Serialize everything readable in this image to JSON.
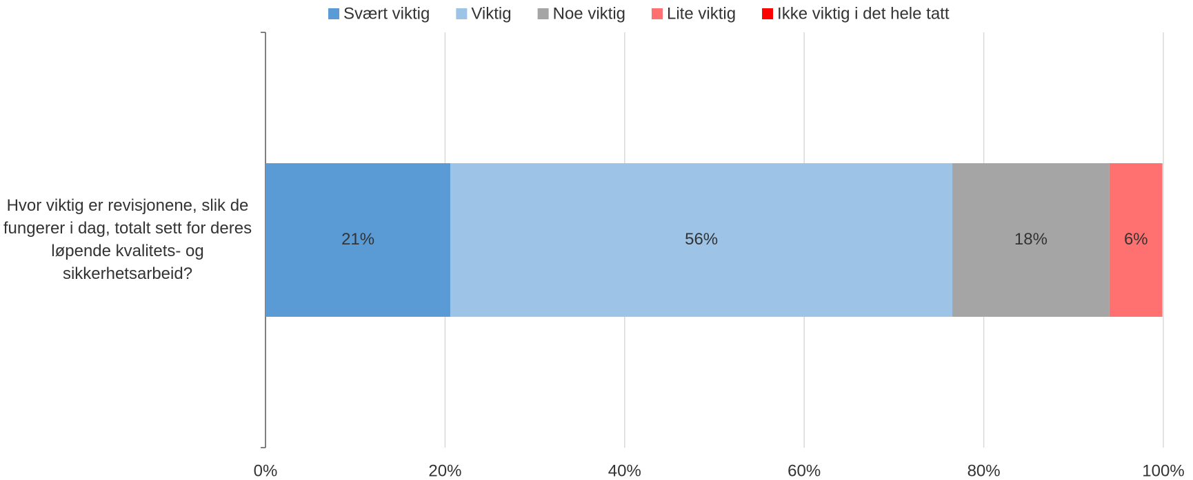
{
  "chart_data": {
    "type": "stacked-bar-horizontal",
    "categories": [
      "Hvor viktig er revisjonene, slik de fungerer i dag, totalt sett for deres løpende kvalitets- og sikkerhetsarbeid?"
    ],
    "series": [
      {
        "name": "Svært viktig",
        "color": "#5b9bd5",
        "values": [
          20.6
        ],
        "value_labels": [
          "21%"
        ]
      },
      {
        "name": "Viktig",
        "color": "#9dc3e6",
        "values": [
          55.9
        ],
        "value_labels": [
          "56%"
        ]
      },
      {
        "name": "Noe viktig",
        "color": "#a5a5a5",
        "values": [
          17.5
        ],
        "value_labels": [
          "18%"
        ]
      },
      {
        "name": "Lite viktig",
        "color": "#ff7171",
        "values": [
          5.9
        ],
        "value_labels": [
          "6%"
        ]
      },
      {
        "name": "Ikke viktig i det hele tatt",
        "color": "#ff0000",
        "values": [
          0
        ],
        "value_labels": [
          null
        ]
      }
    ],
    "xlim": [
      0,
      100
    ],
    "xticks": [
      {
        "value": 0,
        "label": "0%"
      },
      {
        "value": 20,
        "label": "20%"
      },
      {
        "value": 40,
        "label": "40%"
      },
      {
        "value": 60,
        "label": "60%"
      },
      {
        "value": 80,
        "label": "80%"
      },
      {
        "value": 100,
        "label": "100%"
      }
    ],
    "grid": true,
    "legend": "top"
  }
}
